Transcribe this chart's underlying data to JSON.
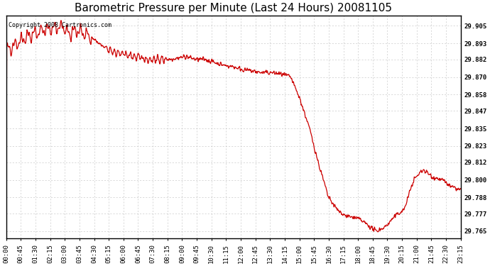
{
  "title": "Barometric Pressure per Minute (Last 24 Hours) 20081105",
  "copyright_text": "Copyright 2008 Cartronics.com",
  "line_color": "#cc0000",
  "background_color": "#ffffff",
  "plot_bg_color": "#ffffff",
  "grid_color": "#bbbbbb",
  "yticks": [
    29.765,
    29.777,
    29.788,
    29.8,
    29.812,
    29.823,
    29.835,
    29.847,
    29.858,
    29.87,
    29.882,
    29.893,
    29.905
  ],
  "ylim": [
    29.76,
    29.912
  ],
  "xtick_labels": [
    "00:00",
    "00:45",
    "01:30",
    "02:15",
    "03:00",
    "03:45",
    "04:30",
    "05:15",
    "06:00",
    "06:45",
    "07:30",
    "08:15",
    "09:00",
    "09:45",
    "10:30",
    "11:15",
    "12:00",
    "12:45",
    "13:30",
    "14:15",
    "15:00",
    "15:45",
    "16:30",
    "17:15",
    "18:00",
    "18:45",
    "19:30",
    "20:15",
    "21:00",
    "21:45",
    "22:30",
    "23:15"
  ],
  "title_fontsize": 11,
  "axis_fontsize": 6.5,
  "copyright_fontsize": 6,
  "waypoints_x": [
    0,
    45,
    90,
    135,
    180,
    200,
    225,
    270,
    315,
    360,
    405,
    450,
    510,
    540,
    570,
    600,
    630,
    660,
    690,
    720,
    750,
    780,
    810,
    840,
    870,
    900,
    930,
    960,
    990,
    1020,
    1050,
    1080,
    1110,
    1140,
    1170,
    1200,
    1230,
    1260,
    1290,
    1320,
    1350,
    1380,
    1410,
    1440
  ],
  "waypoints_y": [
    29.888,
    29.895,
    29.9,
    29.903,
    29.904,
    29.899,
    29.902,
    29.897,
    29.889,
    29.886,
    29.884,
    29.882,
    29.882,
    29.883,
    29.884,
    29.882,
    29.882,
    29.88,
    29.878,
    29.877,
    29.875,
    29.874,
    29.873,
    29.873,
    29.872,
    29.87,
    29.855,
    29.835,
    29.81,
    29.788,
    29.779,
    29.775,
    29.774,
    29.77,
    29.765,
    29.768,
    29.775,
    29.78,
    29.8,
    29.807,
    29.802,
    29.8,
    29.795,
    29.793
  ],
  "noise_seed": 42
}
